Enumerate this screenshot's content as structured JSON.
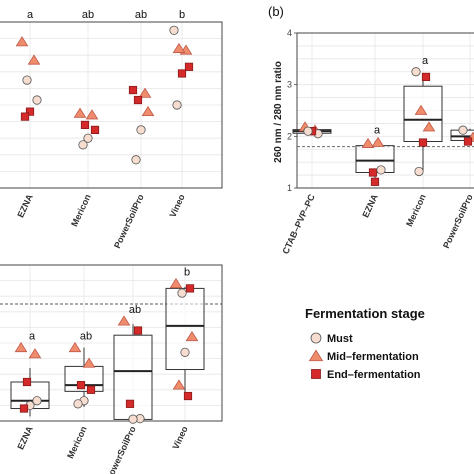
{
  "colors": {
    "must_fill": "#f6ddd0",
    "mid_fill": "#ef8c6c",
    "end_fill": "#d42a2a",
    "point_stroke": "#555555",
    "grid": "#e6e6e6",
    "panel_border": "#444444",
    "box_stroke": "#333333",
    "threshold": "#555555"
  },
  "legend": {
    "title": "Fermentation stage",
    "items": [
      {
        "label": "Must",
        "stage": "must"
      },
      {
        "label": "Mid–fermentation",
        "stage": "mid"
      },
      {
        "label": "End–fermentation",
        "stage": "end"
      }
    ]
  },
  "panel_labels": {
    "top_right": "(b)"
  },
  "chart_data": [
    {
      "panel": "top-left",
      "type": "scatter",
      "categories": [
        "EZNA",
        "Mericon",
        "PowerSoilPro",
        "Vineo"
      ],
      "significance": [
        "a",
        "ab",
        "ab",
        "b"
      ],
      "xlabel": "",
      "ylabel": "",
      "ylim": [
        0,
        10
      ],
      "grid": true,
      "points": [
        {
          "category": "EZNA",
          "stage": "mid",
          "y": 8.8
        },
        {
          "category": "EZNA",
          "stage": "mid",
          "y": 7.7
        },
        {
          "category": "EZNA",
          "stage": "must",
          "y": 6.5
        },
        {
          "category": "EZNA",
          "stage": "must",
          "y": 5.3
        },
        {
          "category": "EZNA",
          "stage": "end",
          "y": 4.6
        },
        {
          "category": "EZNA",
          "stage": "end",
          "y": 4.3
        },
        {
          "category": "Mericon",
          "stage": "mid",
          "y": 4.5
        },
        {
          "category": "Mericon",
          "stage": "mid",
          "y": 4.4
        },
        {
          "category": "Mericon",
          "stage": "end",
          "y": 3.8
        },
        {
          "category": "Mericon",
          "stage": "end",
          "y": 3.5
        },
        {
          "category": "Mericon",
          "stage": "must",
          "y": 3.0
        },
        {
          "category": "Mericon",
          "stage": "must",
          "y": 2.6
        },
        {
          "category": "PowerSoilPro",
          "stage": "end",
          "y": 5.9
        },
        {
          "category": "PowerSoilPro",
          "stage": "mid",
          "y": 5.7
        },
        {
          "category": "PowerSoilPro",
          "stage": "end",
          "y": 5.3
        },
        {
          "category": "PowerSoilPro",
          "stage": "mid",
          "y": 4.6
        },
        {
          "category": "PowerSoilPro",
          "stage": "must",
          "y": 3.5
        },
        {
          "category": "PowerSoilPro",
          "stage": "must",
          "y": 1.7
        },
        {
          "category": "Vineo",
          "stage": "must",
          "y": 9.5
        },
        {
          "category": "Vineo",
          "stage": "mid",
          "y": 8.3
        },
        {
          "category": "Vineo",
          "stage": "mid",
          "y": 8.4
        },
        {
          "category": "Vineo",
          "stage": "end",
          "y": 7.3
        },
        {
          "category": "Vineo",
          "stage": "end",
          "y": 6.9
        },
        {
          "category": "Vineo",
          "stage": "must",
          "y": 5.0
        }
      ]
    },
    {
      "panel": "top-right",
      "type": "box",
      "categories": [
        "CTAB–PVP–PC",
        "EZNA",
        "Mericon",
        "PowerSoilPro"
      ],
      "significance": [
        "",
        "a",
        "a",
        ""
      ],
      "xlabel": "",
      "ylabel": "260 nm / 280 nm ratio",
      "ylim": [
        1,
        4
      ],
      "yticks": [
        1,
        2,
        3,
        4
      ],
      "threshold": 1.8,
      "grid": true,
      "boxes": [
        {
          "category": "CTAB–PVP–PC",
          "min": 2.05,
          "q1": 2.06,
          "median": 2.1,
          "q3": 2.13,
          "max": 2.17
        },
        {
          "category": "EZNA",
          "min": 1.15,
          "q1": 1.3,
          "median": 1.53,
          "q3": 1.82,
          "max": 1.9
        },
        {
          "category": "Mericon",
          "min": 1.3,
          "q1": 1.9,
          "median": 2.32,
          "q3": 2.97,
          "max": 3.2
        },
        {
          "category": "PowerSoilPro",
          "min": 1.85,
          "q1": 1.92,
          "median": 2.0,
          "q3": 2.12,
          "max": 2.15
        }
      ],
      "points": [
        {
          "category": "CTAB–PVP–PC",
          "stage": "mid",
          "y": 2.18
        },
        {
          "category": "CTAB–PVP–PC",
          "stage": "mid",
          "y": 2.12
        },
        {
          "category": "CTAB–PVP–PC",
          "stage": "end",
          "y": 2.1
        },
        {
          "category": "CTAB–PVP–PC",
          "stage": "must",
          "y": 2.05
        },
        {
          "category": "CTAB–PVP–PC",
          "stage": "end",
          "y": 2.1
        },
        {
          "category": "CTAB–PVP–PC",
          "stage": "must",
          "y": 2.1
        },
        {
          "category": "EZNA",
          "stage": "mid",
          "y": 1.86
        },
        {
          "category": "EZNA",
          "stage": "mid",
          "y": 1.88
        },
        {
          "category": "EZNA",
          "stage": "end",
          "y": 1.3
        },
        {
          "category": "EZNA",
          "stage": "must",
          "y": 1.35
        },
        {
          "category": "EZNA",
          "stage": "end",
          "y": 1.12
        },
        {
          "category": "Mericon",
          "stage": "must",
          "y": 3.25
        },
        {
          "category": "Mericon",
          "stage": "end",
          "y": 3.15
        },
        {
          "category": "Mericon",
          "stage": "mid",
          "y": 2.5
        },
        {
          "category": "Mericon",
          "stage": "mid",
          "y": 2.18
        },
        {
          "category": "Mericon",
          "stage": "end",
          "y": 1.88
        },
        {
          "category": "Mericon",
          "stage": "must",
          "y": 1.32
        },
        {
          "category": "PowerSoilPro",
          "stage": "must",
          "y": 2.12
        },
        {
          "category": "PowerSoilPro",
          "stage": "mid",
          "y": 1.98
        },
        {
          "category": "PowerSoilPro",
          "stage": "end",
          "y": 1.9
        }
      ]
    },
    {
      "panel": "bottom-left",
      "type": "box",
      "categories": [
        "EZNA",
        "Mericon",
        "PowerSoilPro",
        "Vineo"
      ],
      "significance": [
        "a",
        "ab",
        "ab",
        "b"
      ],
      "xlabel": "",
      "ylabel": "",
      "ylim": [
        0,
        10
      ],
      "threshold": 7.5,
      "grid": true,
      "boxes": [
        {
          "category": "EZNA",
          "min": 0.3,
          "q1": 0.8,
          "median": 1.3,
          "q3": 2.5,
          "max": 3.4
        },
        {
          "category": "Mericon",
          "min": 0.9,
          "q1": 1.9,
          "median": 2.3,
          "q3": 3.5,
          "max": 4.7
        },
        {
          "category": "PowerSoilPro",
          "min": 0.1,
          "q1": 0.1,
          "median": 3.2,
          "q3": 5.5,
          "max": 6.2
        },
        {
          "category": "Vineo",
          "min": 1.5,
          "q1": 3.3,
          "median": 6.1,
          "q3": 8.5,
          "max": 8.6
        }
      ],
      "points": [
        {
          "category": "EZNA",
          "stage": "mid",
          "y": 4.7
        },
        {
          "category": "EZNA",
          "stage": "mid",
          "y": 4.3
        },
        {
          "category": "EZNA",
          "stage": "end",
          "y": 2.5
        },
        {
          "category": "EZNA",
          "stage": "must",
          "y": 1.3
        },
        {
          "category": "EZNA",
          "stage": "must",
          "y": 1.0
        },
        {
          "category": "EZNA",
          "stage": "end",
          "y": 0.8
        },
        {
          "category": "Mericon",
          "stage": "mid",
          "y": 4.7
        },
        {
          "category": "Mericon",
          "stage": "mid",
          "y": 3.7
        },
        {
          "category": "Mericon",
          "stage": "end",
          "y": 2.3
        },
        {
          "category": "Mericon",
          "stage": "end",
          "y": 2.0
        },
        {
          "category": "Mericon",
          "stage": "must",
          "y": 1.3
        },
        {
          "category": "Mericon",
          "stage": "must",
          "y": 1.1
        },
        {
          "category": "PowerSoilPro",
          "stage": "mid",
          "y": 6.4
        },
        {
          "category": "PowerSoilPro",
          "stage": "end",
          "y": 5.8
        },
        {
          "category": "PowerSoilPro",
          "stage": "end",
          "y": 1.1
        },
        {
          "category": "PowerSoilPro",
          "stage": "must",
          "y": 0.15
        },
        {
          "category": "PowerSoilPro",
          "stage": "must",
          "y": 0.12
        },
        {
          "category": "Vineo",
          "stage": "mid",
          "y": 8.8
        },
        {
          "category": "Vineo",
          "stage": "end",
          "y": 8.5
        },
        {
          "category": "Vineo",
          "stage": "must",
          "y": 8.2
        },
        {
          "category": "Vineo",
          "stage": "mid",
          "y": 5.4
        },
        {
          "category": "Vineo",
          "stage": "must",
          "y": 4.4
        },
        {
          "category": "Vineo",
          "stage": "mid",
          "y": 2.3
        },
        {
          "category": "Vineo",
          "stage": "end",
          "y": 1.6
        }
      ]
    }
  ]
}
